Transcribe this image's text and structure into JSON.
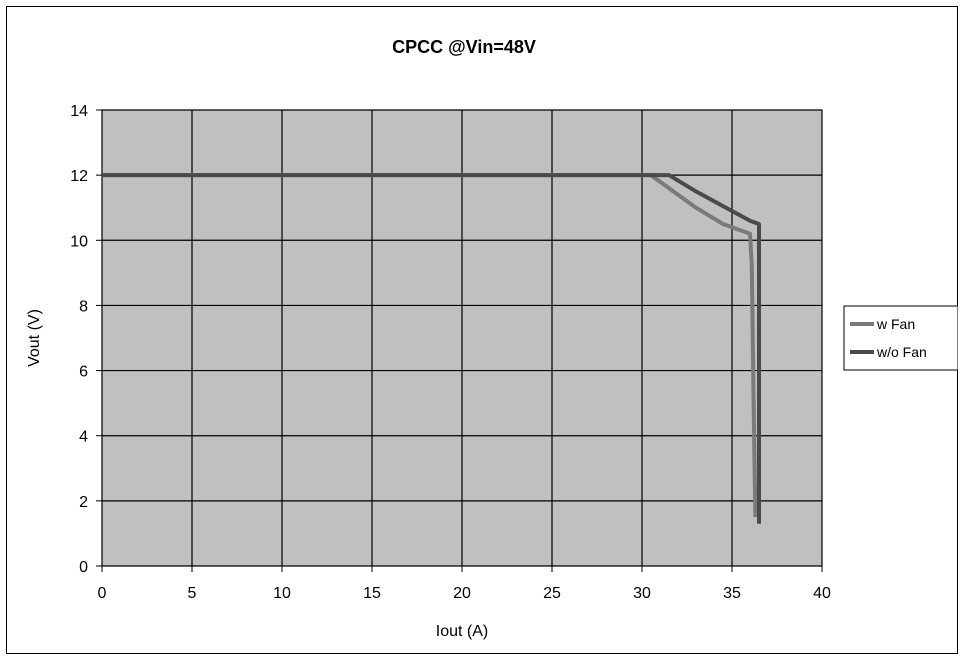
{
  "chart_data": {
    "type": "line",
    "title": "CPCC @Vin=48V",
    "xlabel": "Iout (A)",
    "ylabel": "Vout (V)",
    "xlim": [
      0,
      40
    ],
    "ylim": [
      0,
      14
    ],
    "xticks": [
      0,
      5,
      10,
      15,
      20,
      25,
      30,
      35,
      40
    ],
    "yticks": [
      0,
      2,
      4,
      6,
      8,
      10,
      12,
      14
    ],
    "grid": true,
    "plot_background": "#c0c0c0",
    "legend_position": "right",
    "series": [
      {
        "name": "w Fan",
        "color": "#7a7a7a",
        "points": [
          [
            0,
            12
          ],
          [
            30.5,
            12
          ],
          [
            31.5,
            11.6
          ],
          [
            33,
            11.0
          ],
          [
            34.5,
            10.5
          ],
          [
            35.5,
            10.3
          ],
          [
            36,
            10.2
          ],
          [
            36.1,
            9.2
          ],
          [
            36.2,
            5.0
          ],
          [
            36.3,
            1.5
          ]
        ]
      },
      {
        "name": "w/o Fan",
        "color": "#4a4a4a",
        "points": [
          [
            0,
            12
          ],
          [
            31.5,
            12
          ],
          [
            33,
            11.5
          ],
          [
            35,
            10.9
          ],
          [
            36,
            10.6
          ],
          [
            36.5,
            10.5
          ],
          [
            36.5,
            1.3
          ]
        ]
      }
    ]
  }
}
